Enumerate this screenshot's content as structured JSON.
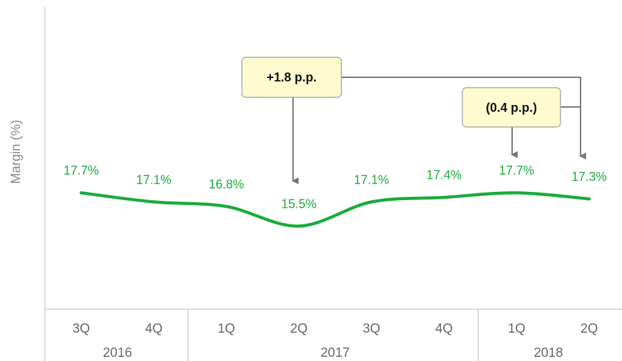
{
  "chart_data": {
    "type": "line",
    "y_label": "Margin (%)",
    "categories": [
      "3Q",
      "4Q",
      "1Q",
      "2Q",
      "3Q",
      "4Q",
      "1Q",
      "2Q"
    ],
    "x_groups": [
      {
        "label": "2016",
        "count": 2
      },
      {
        "label": "2017",
        "count": 4
      },
      {
        "label": "2018",
        "count": 2
      }
    ],
    "values": [
      17.7,
      17.1,
      16.8,
      15.5,
      17.1,
      17.4,
      17.7,
      17.3
    ],
    "value_labels": [
      "17.7%",
      "17.1%",
      "16.8%",
      "15.5%",
      "17.1%",
      "17.4%",
      "17.7%",
      "17.3%"
    ],
    "color": "#1aab3c",
    "ylim": [
      10,
      30
    ],
    "annotations": [
      "+1.8 p.p.",
      "(0.4 p.p.)"
    ]
  }
}
